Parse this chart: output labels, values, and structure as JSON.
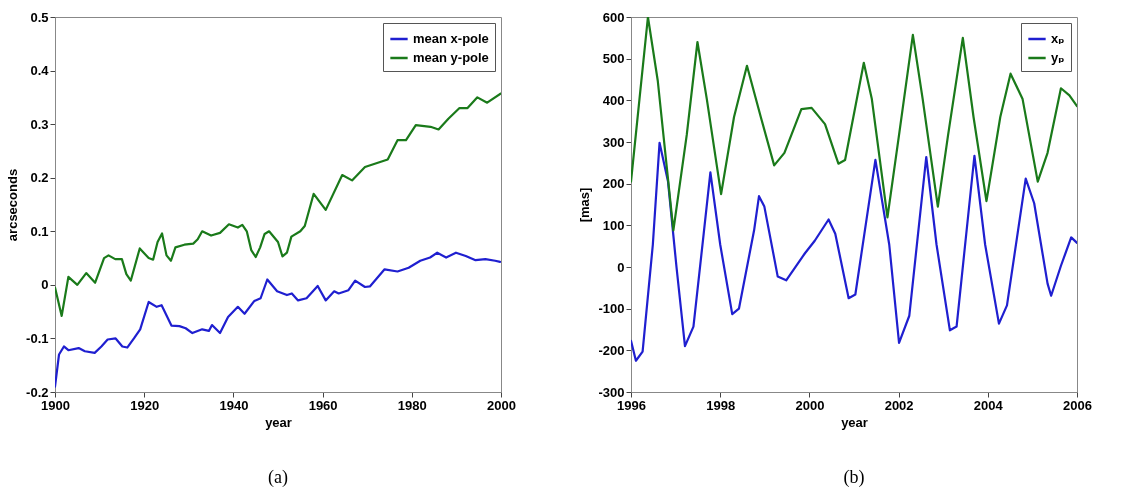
{
  "chart_data": [
    {
      "type": "line",
      "xlabel": "year",
      "ylabel": "arcseconds",
      "xlim": [
        1900,
        2000
      ],
      "xticks": [
        1900,
        1920,
        1940,
        1960,
        1980,
        2000
      ],
      "ylim": [
        -0.2,
        0.5
      ],
      "yticks": [
        -0.2,
        -0.1,
        0,
        0.1,
        0.2,
        0.3,
        0.4,
        0.5
      ],
      "grid": false,
      "legend": "top right",
      "line_style": "solid",
      "annotations": [
        "(a)"
      ],
      "series": [
        {
          "name": "mean x-pole",
          "color": "#1f1fd0",
          "x": [
            1900,
            1900.9,
            1902,
            1903,
            1905.3,
            1906.7,
            1908.9,
            1910.4,
            1911.8,
            1913.6,
            1915.1,
            1916.2,
            1917.7,
            1919.1,
            1921,
            1922.8,
            1923.9,
            1926.1,
            1927.9,
            1929.3,
            1930.8,
            1933,
            1934.5,
            1935.2,
            1937,
            1938.8,
            1941,
            1942.5,
            1944.7,
            1946.1,
            1947.6,
            1949.8,
            1952,
            1953.1,
            1954.5,
            1956.4,
            1958.9,
            1960.7,
            1962.6,
            1963.6,
            1965.8,
            1967.3,
            1969.5,
            1970.6,
            1973.9,
            1976.8,
            1979.3,
            1981.9,
            1984.1,
            1985.7,
            1987.7,
            1989.9,
            1992.1,
            1994.3,
            1996.5,
            1998.7,
            1999.8
          ],
          "values": [
            -0.19,
            -0.13,
            -0.115,
            -0.122,
            -0.118,
            -0.124,
            -0.127,
            -0.115,
            -0.102,
            -0.1,
            -0.115,
            -0.117,
            -0.1,
            -0.083,
            -0.032,
            -0.041,
            -0.038,
            -0.076,
            -0.077,
            -0.081,
            -0.09,
            -0.083,
            -0.086,
            -0.075,
            -0.09,
            -0.06,
            -0.041,
            -0.054,
            -0.03,
            -0.025,
            0.01,
            -0.012,
            -0.019,
            -0.016,
            -0.029,
            -0.025,
            -0.002,
            -0.029,
            -0.012,
            -0.016,
            -0.01,
            0.008,
            -0.004,
            -0.003,
            0.029,
            0.025,
            0.032,
            0.045,
            0.051,
            0.06,
            0.051,
            0.06,
            0.054,
            0.046,
            0.048,
            0.045,
            0.043
          ]
        },
        {
          "name": "mean y-pole",
          "color": "#1a7a1a",
          "x": [
            1900,
            1901.5,
            1903,
            1905,
            1907,
            1909,
            1911,
            1912,
            1913.5,
            1915,
            1916,
            1917,
            1919,
            1921,
            1922,
            1923,
            1924,
            1925,
            1926,
            1927,
            1929,
            1931,
            1932,
            1933,
            1935,
            1937,
            1939,
            1941,
            1942,
            1943,
            1944,
            1945,
            1946,
            1947,
            1948,
            1950,
            1951,
            1952,
            1953,
            1955,
            1956,
            1958,
            1960.7,
            1964.4,
            1966.6,
            1969.5,
            1974.6,
            1976.8,
            1978.7,
            1980.9,
            1984.2,
            1986,
            1988.2,
            1990.7,
            1992.5,
            1994.7,
            1996.9,
            1999.9
          ],
          "values": [
            -0.005,
            -0.058,
            0.015,
            0.0,
            0.022,
            0.004,
            0.05,
            0.055,
            0.048,
            0.048,
            0.02,
            0.008,
            0.068,
            0.05,
            0.047,
            0.08,
            0.096,
            0.055,
            0.045,
            0.07,
            0.075,
            0.077,
            0.085,
            0.1,
            0.092,
            0.097,
            0.113,
            0.107,
            0.112,
            0.1,
            0.065,
            0.052,
            0.07,
            0.095,
            0.1,
            0.08,
            0.053,
            0.06,
            0.09,
            0.1,
            0.11,
            0.17,
            0.14,
            0.205,
            0.195,
            0.22,
            0.234,
            0.27,
            0.27,
            0.298,
            0.295,
            0.29,
            0.31,
            0.33,
            0.33,
            0.35,
            0.34,
            0.357
          ]
        }
      ]
    },
    {
      "type": "line",
      "xlabel": "year",
      "ylabel": "[mas]",
      "xlim": [
        1996,
        2006
      ],
      "xticks": [
        1996,
        1998,
        2000,
        2002,
        2004,
        2006
      ],
      "ylim": [
        -300,
        600
      ],
      "yticks": [
        -300,
        -200,
        -100,
        0,
        100,
        200,
        300,
        400,
        500,
        600
      ],
      "grid": false,
      "legend": "top right",
      "line_style": "solid",
      "annotations": [
        "(b)"
      ],
      "series": [
        {
          "name": "xₚ",
          "color": "#1f1fd0",
          "x": [
            1996,
            1996.11,
            1996.26,
            1996.49,
            1996.64,
            1996.83,
            1997.02,
            1997.21,
            1997.4,
            1997.63,
            1997.78,
            1998.0,
            1998.27,
            1998.42,
            1998.76,
            1998.87,
            1998.99,
            1999.29,
            1999.48,
            1999.9,
            2000.12,
            2000.43,
            2000.58,
            2000.88,
            2001.03,
            2001.48,
            2001.79,
            2002.01,
            2002.24,
            2002.62,
            2002.85,
            2003.15,
            2003.3,
            2003.7,
            2003.94,
            2004.25,
            2004.43,
            2004.85,
            2005.04,
            2005.34,
            2005.42,
            2005.64,
            2005.87,
            2006
          ],
          "values": [
            -177,
            -225,
            -203,
            54,
            298,
            205,
            0,
            -190,
            -143,
            80,
            227,
            54,
            -113,
            -100,
            88,
            170,
            145,
            -23,
            -32,
            33,
            63,
            114,
            80,
            -75,
            -66,
            257,
            54,
            -182,
            -117,
            264,
            54,
            -152,
            -143,
            267,
            54,
            -136,
            -92,
            212,
            153,
            -40,
            -69,
            3,
            71,
            58
          ]
        },
        {
          "name": "yₚ",
          "color": "#1a7a1a",
          "x": [
            1996,
            1996.19,
            1996.38,
            1996.6,
            1996.95,
            1997.25,
            1997.49,
            1997.7,
            1998.02,
            1998.31,
            1998.6,
            1998.91,
            1999.21,
            1999.44,
            1999.82,
            2000.05,
            2000.35,
            2000.65,
            2000.8,
            2001.22,
            2001.4,
            2001.75,
            2002.01,
            2002.32,
            2002.54,
            2002.88,
            2003.11,
            2003.44,
            2003.68,
            2003.97,
            2004.28,
            2004.51,
            2004.78,
            2005.12,
            2005.34,
            2005.64,
            2005.83,
            2006
          ],
          "values": [
            205,
            403,
            600,
            447,
            88,
            317,
            540,
            403,
            175,
            360,
            483,
            360,
            244,
            274,
            379,
            382,
            343,
            248,
            257,
            490,
            403,
            119,
            317,
            557,
            403,
            145,
            317,
            550,
            360,
            158,
            360,
            464,
            403,
            205,
            274,
            429,
            412,
            386
          ]
        }
      ]
    }
  ]
}
